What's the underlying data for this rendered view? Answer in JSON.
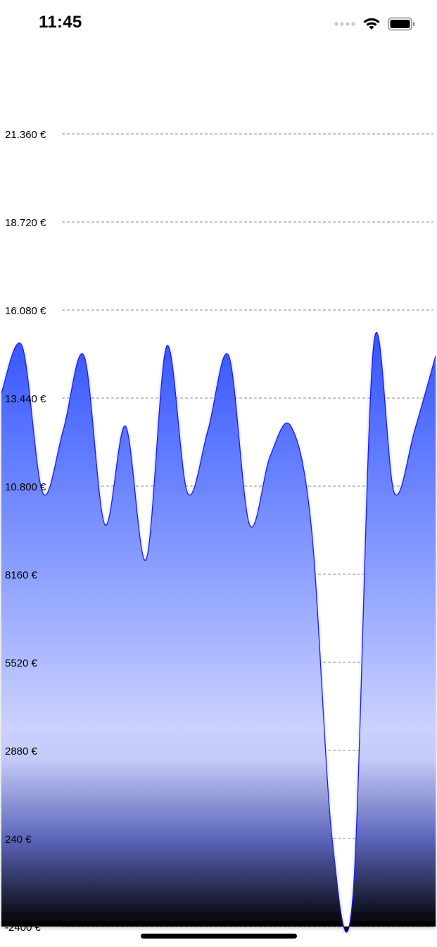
{
  "status_bar": {
    "time": "11:45",
    "icons": [
      "signal-dots-icon",
      "wifi-icon",
      "battery-icon"
    ]
  },
  "chart_data": {
    "type": "area",
    "smooth": true,
    "grid": true,
    "grid_style": "dashed-horizontal",
    "line_color": "#1a1aff",
    "fill_gradient": [
      "#3355ff",
      "#c8d0ff",
      "#000000"
    ],
    "ylim": [
      -2400,
      21360
    ],
    "y_ticks": [
      21360,
      18720,
      16080,
      13440,
      10800,
      8160,
      5520,
      2880,
      240,
      -2400
    ],
    "y_tick_labels": [
      "21.360 €",
      "18.720 €",
      "16.080 €",
      "13.440 €",
      "10.800 €",
      "8160 €",
      "5520 €",
      "2880 €",
      "240 €",
      "-2400 €"
    ],
    "x": [
      0,
      1,
      2,
      3,
      4,
      5,
      6,
      7,
      8,
      9,
      10,
      11,
      12,
      13,
      14,
      15,
      16,
      17,
      18,
      19,
      20,
      21
    ],
    "values": [
      13600,
      15000,
      10600,
      12500,
      14700,
      9650,
      12600,
      8600,
      15000,
      10600,
      12500,
      14700,
      9650,
      11700,
      12600,
      9500,
      200,
      -1500,
      15000,
      10600,
      12500,
      14700
    ]
  }
}
